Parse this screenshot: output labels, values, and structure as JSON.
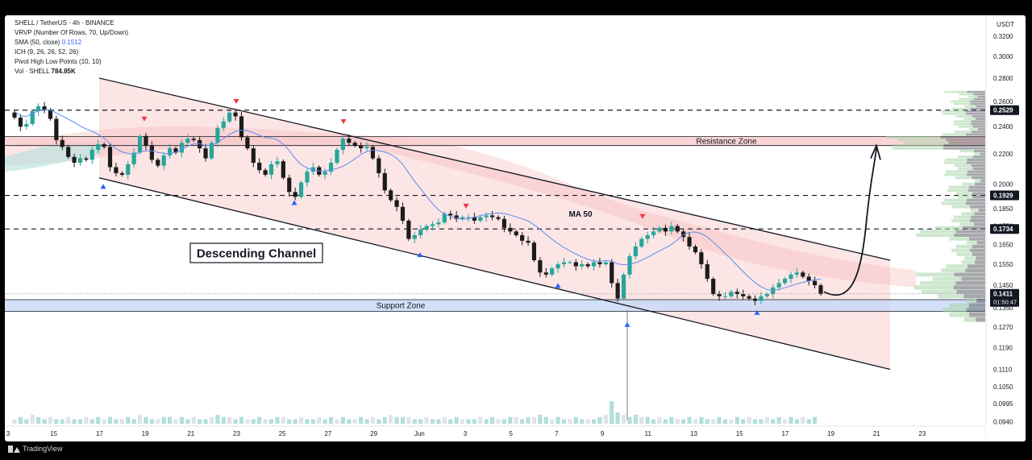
{
  "legend": {
    "symbol": "SHELL / TetherUS · 4h · BINANCE",
    "vrvp": "VRVP (Number Of Rows, 70, Up/Down)",
    "sma_label": "SMA (50, close)",
    "sma_value": "0.1512",
    "ich": "ICH (9, 26, 26, 52, 26)",
    "pivot": "Pivot High Low Points (10, 10)",
    "vol_label": "Vol · SHELL",
    "vol_value": "784.85K"
  },
  "footer": {
    "brand": "TradingView"
  },
  "chart_data": {
    "type": "candlestick",
    "title": "",
    "currency": "USDT",
    "x_ticks": [
      "3",
      "15",
      "17",
      "19",
      "21",
      "23",
      "25",
      "27",
      "29",
      "Jun",
      "3",
      "5",
      "7",
      "9",
      "11",
      "13",
      "15",
      "17",
      "19",
      "21",
      "23"
    ],
    "y_ticks": [
      "0.3200",
      "0.3000",
      "0.2800",
      "0.2600",
      "0.2400",
      "0.2200",
      "0.2000",
      "0.1850",
      "0.1750",
      "0.1650",
      "0.1550",
      "0.1450",
      "0.1350",
      "0.1270",
      "0.1190",
      "0.1110",
      "0.1050",
      "0.0995",
      "0.0940"
    ],
    "y_range": [
      0.0925,
      0.325
    ],
    "price_labels": [
      {
        "value": 0.2529,
        "text": "0.2529"
      },
      {
        "value": 0.1929,
        "text": "0.1929"
      },
      {
        "value": 0.1734,
        "text": "0.1734"
      }
    ],
    "current_price": {
      "value": 0.1411,
      "text": "0.1411",
      "countdown": "01:50:47"
    },
    "zones": [
      {
        "name": "Resistance Zone",
        "low": 0.226,
        "high": 0.2325
      },
      {
        "name": "Support Zone",
        "low": 0.1335,
        "high": 0.1385
      }
    ],
    "annotations": [
      "Descending Channel",
      "MA 50"
    ],
    "close_series": [
      0.247,
      0.24,
      0.242,
      0.252,
      0.256,
      0.253,
      0.246,
      0.23,
      0.225,
      0.218,
      0.214,
      0.217,
      0.216,
      0.223,
      0.227,
      0.225,
      0.211,
      0.207,
      0.206,
      0.213,
      0.221,
      0.233,
      0.226,
      0.216,
      0.212,
      0.219,
      0.224,
      0.221,
      0.228,
      0.231,
      0.23,
      0.224,
      0.217,
      0.228,
      0.239,
      0.244,
      0.251,
      0.248,
      0.232,
      0.224,
      0.214,
      0.209,
      0.206,
      0.213,
      0.215,
      0.204,
      0.195,
      0.192,
      0.201,
      0.208,
      0.211,
      0.206,
      0.208,
      0.214,
      0.223,
      0.231,
      0.228,
      0.226,
      0.224,
      0.225,
      0.217,
      0.207,
      0.196,
      0.19,
      0.186,
      0.178,
      0.168,
      0.17,
      0.173,
      0.175,
      0.176,
      0.177,
      0.182,
      0.181,
      0.179,
      0.18,
      0.18,
      0.178,
      0.18,
      0.181,
      0.18,
      0.179,
      0.174,
      0.172,
      0.17,
      0.167,
      0.166,
      0.157,
      0.151,
      0.15,
      0.153,
      0.155,
      0.156,
      0.156,
      0.154,
      0.155,
      0.154,
      0.156,
      0.155,
      0.156,
      0.146,
      0.139,
      0.15,
      0.159,
      0.164,
      0.168,
      0.17,
      0.172,
      0.174,
      0.172,
      0.175,
      0.172,
      0.169,
      0.164,
      0.161,
      0.155,
      0.148,
      0.141,
      0.14,
      0.14,
      0.142,
      0.141,
      0.14,
      0.139,
      0.138,
      0.14,
      0.141,
      0.144,
      0.146,
      0.148,
      0.15,
      0.151,
      0.149,
      0.147,
      0.145,
      0.1411
    ],
    "volume_relative": [
      0.2,
      0.3,
      0.2,
      0.4,
      0.3,
      0.2,
      0.3,
      0.2,
      0.2,
      0.3,
      0.2,
      0.2,
      0.3,
      0.2,
      0.3,
      0.2,
      0.3,
      0.2,
      0.2,
      0.3,
      0.2,
      0.4,
      0.3,
      0.2,
      0.2,
      0.3,
      0.3,
      0.2,
      0.3,
      0.2,
      0.3,
      0.2,
      0.2,
      0.3,
      0.4,
      0.3,
      0.3,
      0.2,
      0.3,
      0.2,
      0.2,
      0.3,
      0.2,
      0.2,
      0.3,
      0.3,
      0.2,
      0.2,
      0.3,
      0.2,
      0.2,
      0.3,
      0.2,
      0.3,
      0.2,
      0.3,
      0.2,
      0.2,
      0.3,
      0.2,
      0.3,
      0.2,
      0.3,
      0.4,
      0.3,
      0.3,
      0.3,
      0.2,
      0.2,
      0.3,
      0.2,
      0.2,
      0.3,
      0.2,
      0.3,
      0.2,
      0.2,
      0.2,
      0.3,
      0.2,
      0.3,
      0.2,
      0.2,
      0.3,
      0.3,
      0.2,
      0.3,
      0.3,
      0.4,
      0.3,
      0.2,
      0.3,
      0.2,
      0.2,
      0.3,
      0.2,
      0.2,
      0.2,
      0.3,
      0.4,
      1.0,
      0.5,
      0.4,
      0.3,
      0.4,
      0.3,
      0.3,
      0.2,
      0.3,
      0.2,
      0.3,
      0.2,
      0.2,
      0.3,
      0.2,
      0.3,
      0.2,
      0.2,
      0.3,
      0.2,
      0.2,
      0.3,
      0.2,
      0.3,
      0.2,
      0.2,
      0.3,
      0.2,
      0.3,
      0.2,
      0.3,
      0.2,
      0.3,
      0.2,
      0.3
    ]
  },
  "colors": {
    "up": "#26a69a",
    "down": "#1b1b1b",
    "channel_fill": "#fbdcdc",
    "resistance": "#f8c9c9",
    "support": "#c7d8f6",
    "ma": "#5b8def",
    "pivot_high": "#f23645",
    "pivot_low": "#2962ff"
  }
}
